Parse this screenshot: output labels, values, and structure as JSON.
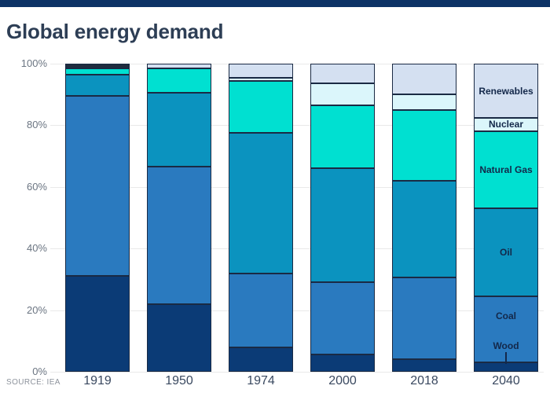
{
  "page": {
    "title": "Global energy demand",
    "source": "SOURCE: IEA"
  },
  "colors": {
    "top_bar": "#0d3366",
    "title_text": "#2d3e55",
    "grid": "#e9e9e9",
    "segment_border": "#1a2a44",
    "y_tick_text": "#6b7582",
    "year_text": "#3a4960",
    "in_bar_label_text": "#13284a",
    "source_text": "#8d939c"
  },
  "chart_data": {
    "type": "bar",
    "stacked": true,
    "unit": "percent of total",
    "title": "Global energy demand",
    "categories": [
      "1919",
      "1950",
      "1974",
      "2000",
      "2018",
      "2040"
    ],
    "series": [
      {
        "name": "Wood",
        "color": "#0b3b76",
        "values": [
          31,
          22,
          8,
          5.5,
          4,
          3
        ]
      },
      {
        "name": "Coal",
        "color": "#2a7abf",
        "values": [
          58.5,
          44.5,
          24,
          23.5,
          26.5,
          21.5
        ]
      },
      {
        "name": "Oil",
        "color": "#0b93bf",
        "values": [
          7,
          24,
          45.5,
          37,
          31.5,
          28.5
        ]
      },
      {
        "name": "Natural Gas",
        "color": "#00e0d1",
        "values": [
          2,
          8,
          17,
          20.5,
          23,
          25
        ]
      },
      {
        "name": "Nuclear",
        "color": "#dbf6fb",
        "values": [
          0,
          0,
          1,
          7,
          5,
          4.5
        ]
      },
      {
        "name": "Renewables",
        "color": "#d4e0f1",
        "values": [
          1.5,
          1.5,
          4.5,
          6.5,
          10,
          17.5
        ]
      }
    ],
    "color_overrides": {
      "1919": {
        "Renewables": "#202c3e"
      }
    },
    "ylim": [
      0,
      100
    ],
    "y_ticks": [
      "100%",
      "80%",
      "60%",
      "40%",
      "20%",
      "0%"
    ],
    "grid": true,
    "legend_position": "labels inside last bar (2040)",
    "in_bar_labels": [
      {
        "text": "Renewables",
        "pct": 91.0
      },
      {
        "text": "Nuclear",
        "pct": 80.3
      },
      {
        "text": "Natural Gas",
        "pct": 65.5
      },
      {
        "text": "Oil",
        "pct": 38.8
      },
      {
        "text": "Coal",
        "pct": 18.0
      },
      {
        "text": "Wood",
        "pct": 8.4,
        "tick": true
      }
    ]
  }
}
